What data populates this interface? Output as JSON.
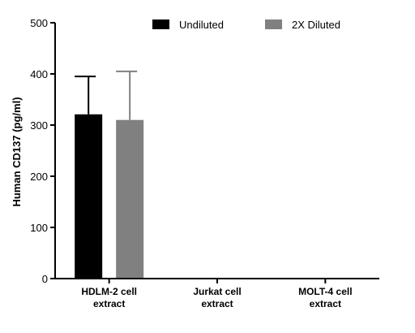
{
  "chart_data": {
    "type": "bar",
    "title": "",
    "xlabel": "",
    "ylabel": "Human CD137 (pg/ml)",
    "ylim": [
      0,
      500
    ],
    "yticks": [
      0,
      100,
      200,
      300,
      400,
      500
    ],
    "categories": [
      [
        "HDLM-2 cell",
        "extract"
      ],
      [
        "Jurkat cell",
        "extract"
      ],
      [
        "MOLT-4 cell",
        "extract"
      ]
    ],
    "series": [
      {
        "name": "Undiluted",
        "color": "#000000",
        "values": [
          321,
          0,
          0
        ],
        "error_upper": [
          74,
          0,
          0
        ]
      },
      {
        "name": "2X Diluted",
        "color": "#808080",
        "values": [
          310,
          0,
          0
        ],
        "error_upper": [
          95,
          0,
          0
        ]
      }
    ],
    "legend": "top",
    "grid": false
  }
}
